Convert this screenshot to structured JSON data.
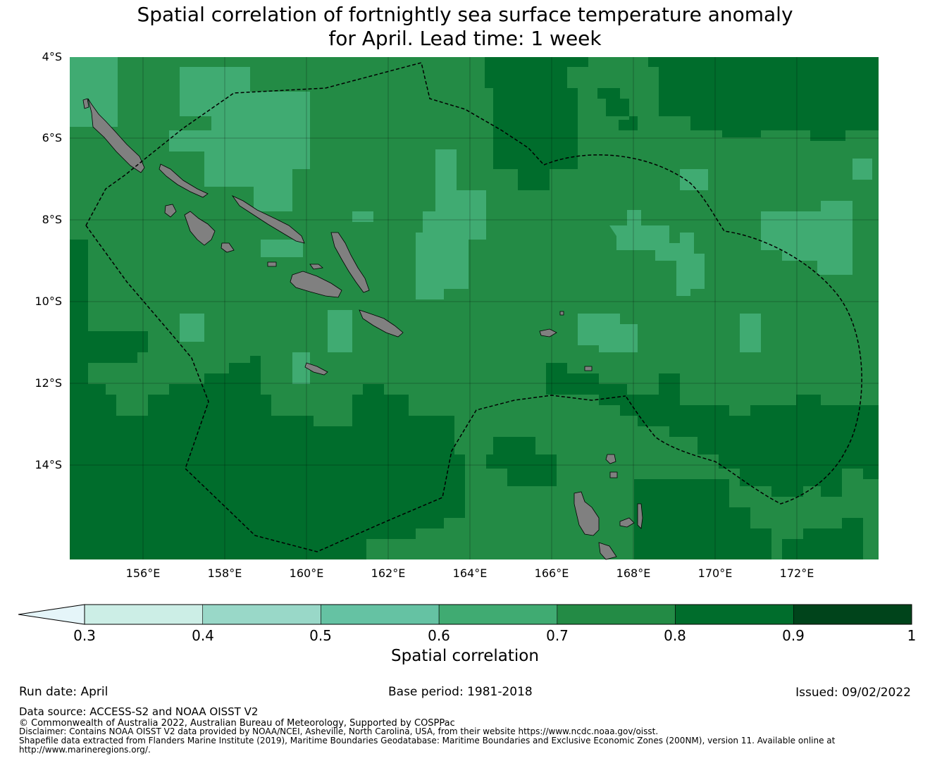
{
  "title": {
    "line1": "Spatial correlation of fortnightly sea surface temperature anomaly",
    "line2": "for April. Lead time: 1 week"
  },
  "map": {
    "lat_labels": [
      "4°S",
      "6°S",
      "8°S",
      "10°S",
      "12°S",
      "14°S"
    ],
    "lon_labels": [
      "156°E",
      "158°E",
      "160°E",
      "162°E",
      "164°E",
      "166°E",
      "168°E",
      "170°E",
      "172°E"
    ],
    "land_color": "#808080",
    "boundary_style": "dashed black (EEZ)"
  },
  "colorbar": {
    "label": "Spatial correlation",
    "ticks": [
      "0.3",
      "0.4",
      "0.5",
      "0.6",
      "0.7",
      "0.8",
      "0.9",
      "1"
    ],
    "bin_colors": [
      "#cceee6",
      "#99d8c8",
      "#65c2a3",
      "#40ab72",
      "#238b45",
      "#006d2c",
      "#00441b"
    ],
    "extend_color": "#e5f5f9"
  },
  "footer": {
    "run_date": "Run date: April",
    "base_period": "Base period: 1981-2018",
    "issued": "Issued: 09/02/2022",
    "data_source": "Data source: ACCESS-S2 and NOAA OISST V2",
    "copyright": "© Commonwealth of Australia 2022, Australian Bureau of Meteorology, Supported by COSPPac",
    "disclaimer": "Disclaimer: Contains NOAA OISST V2 data provided by NOAA/NCEI, Asheville, North Carolina, USA, from their website https://www.ncdc.noaa.gov/oisst.",
    "shapefile1": "Shapefile data extracted from Flanders Marine Institute (2019), Maritime Boundaries Geodatabase: Maritime Boundaries and Exclusive Economic Zones (200NM), version 11. Available online at",
    "shapefile2": "http://www.marineregions.org/."
  }
}
